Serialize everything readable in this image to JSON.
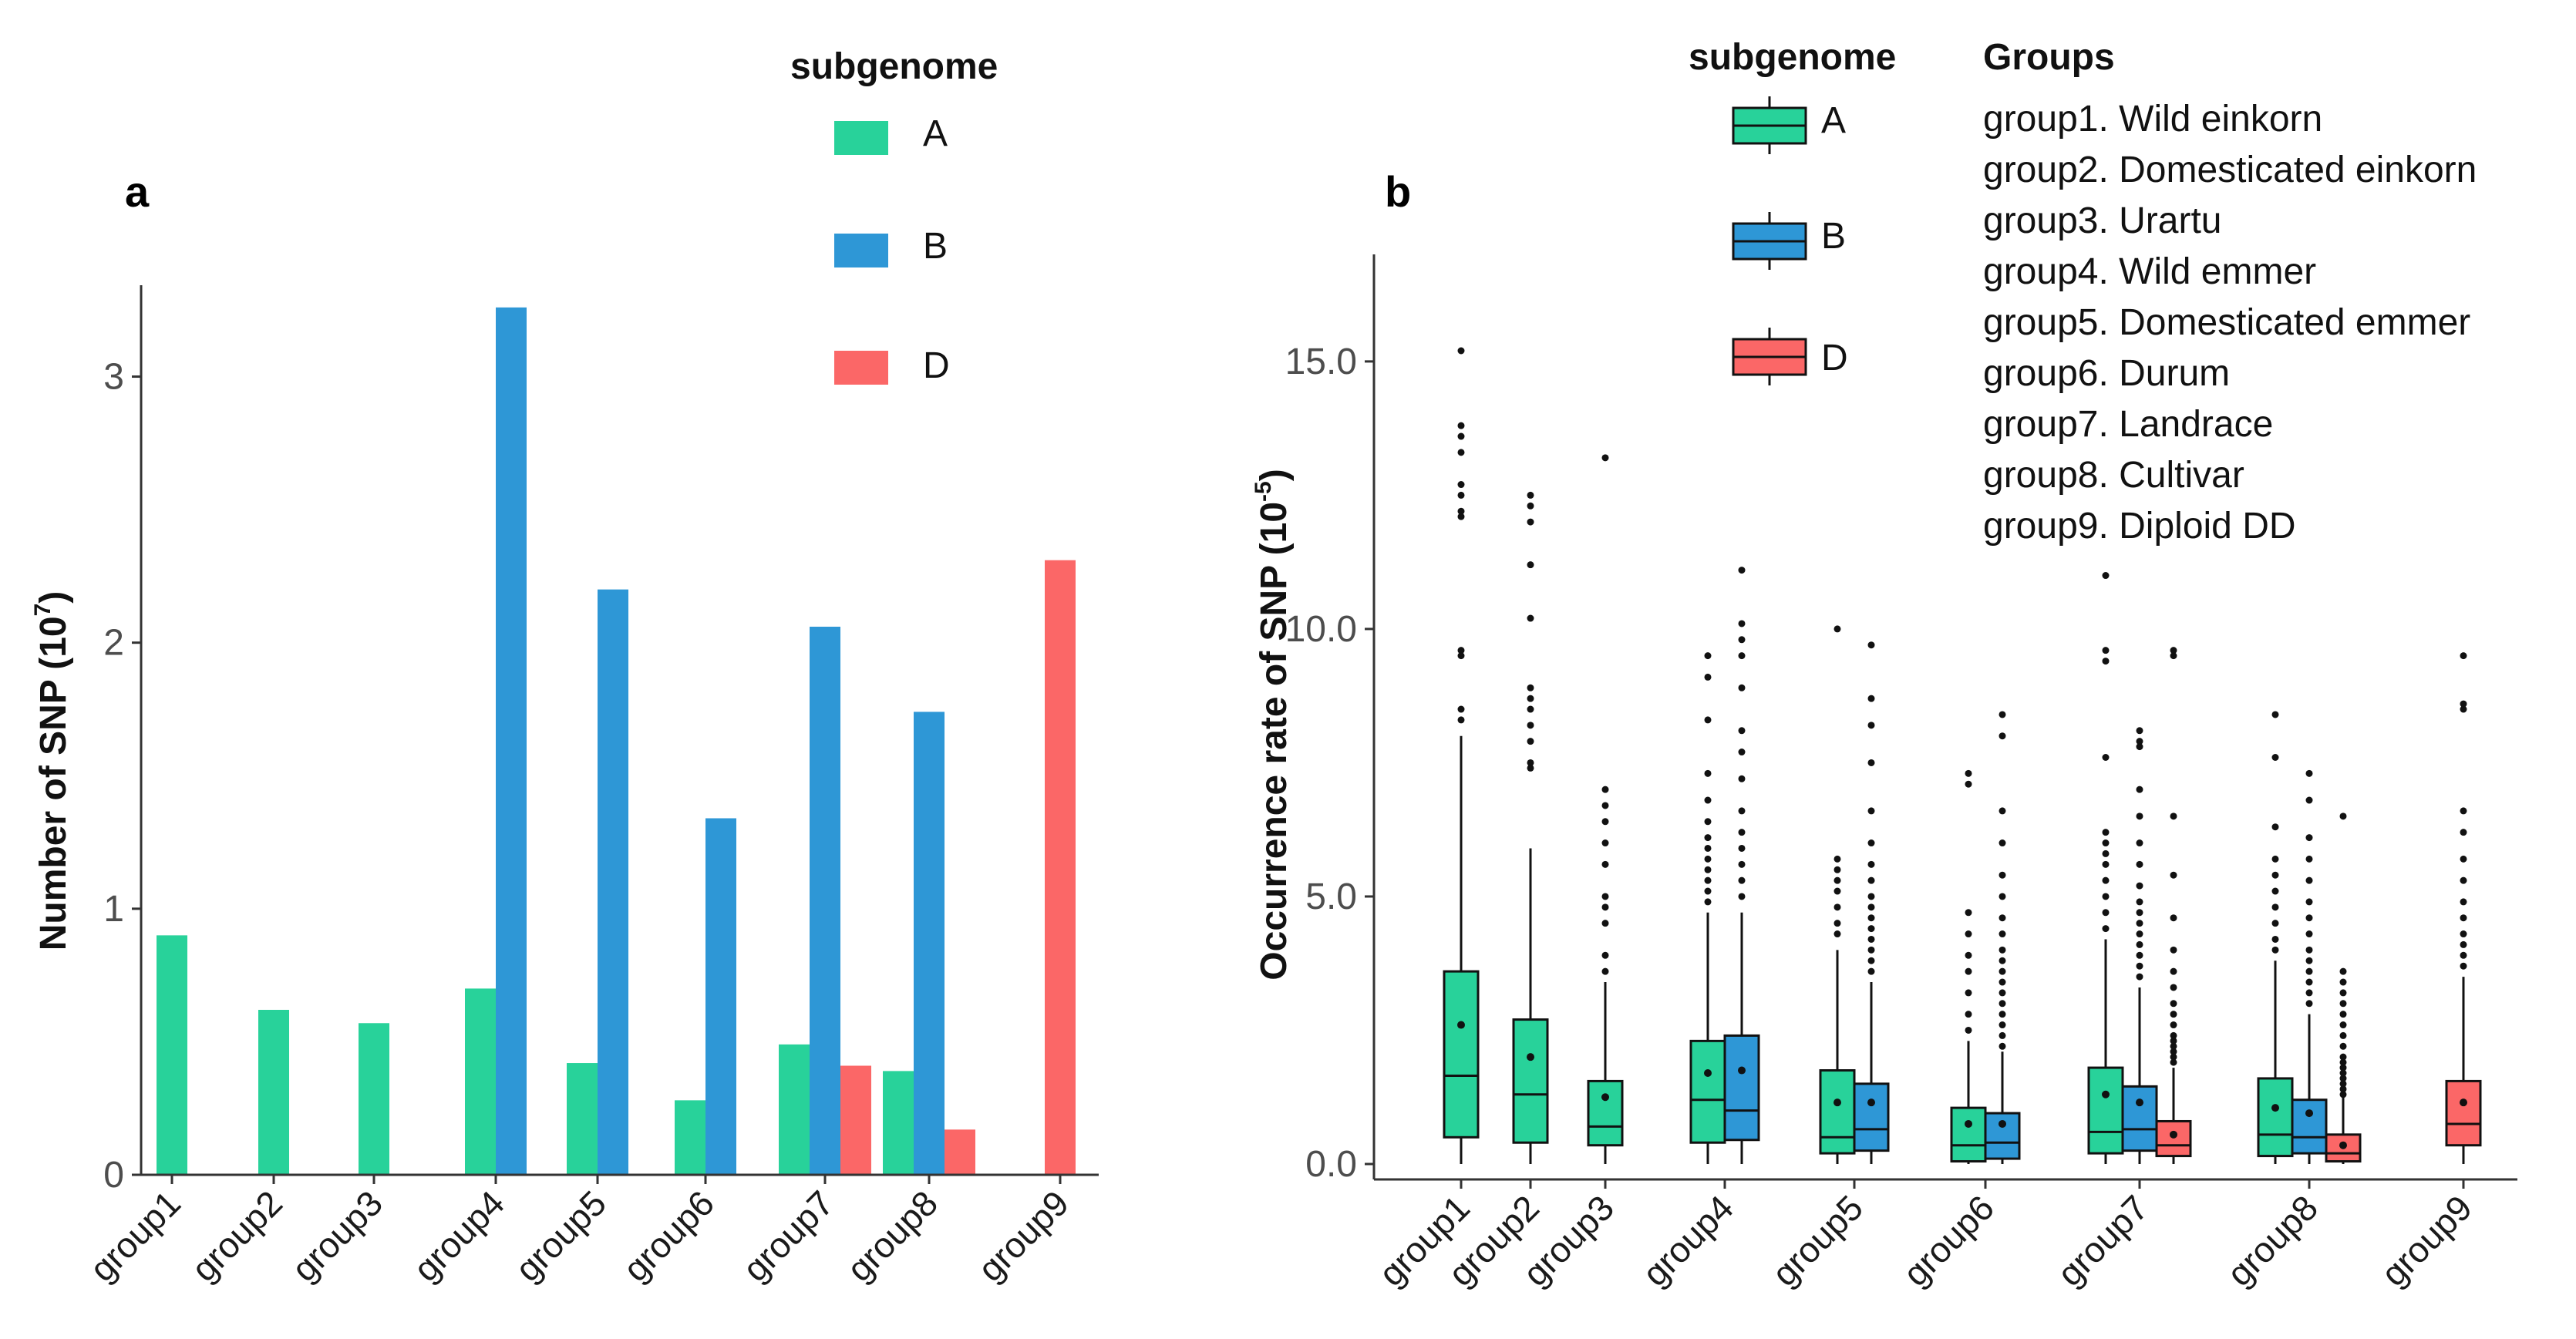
{
  "colors": {
    "A": "#28d29a",
    "B": "#2e97d6",
    "D": "#fb6767",
    "axis": "#333333"
  },
  "chart_data": [
    {
      "type": "bar",
      "panel_label": "a",
      "title": "",
      "xlabel": "",
      "ylabel": "Number of SNP (10",
      "ylabel_exp": "7",
      "ylabel_close": ")",
      "ylim": [
        0,
        3.3
      ],
      "yticks": [
        0,
        1,
        2,
        3
      ],
      "ytick_labels": [
        "0",
        "1",
        "2",
        "3"
      ],
      "categories": [
        "group1",
        "group2",
        "group3",
        "group4",
        "group5",
        "group6",
        "group7",
        "group8",
        "group9"
      ],
      "series": [
        {
          "name": "A",
          "values": [
            0.9,
            0.62,
            0.57,
            0.7,
            0.42,
            0.28,
            0.49,
            0.39,
            null
          ]
        },
        {
          "name": "B",
          "values": [
            null,
            null,
            null,
            3.26,
            2.2,
            1.34,
            2.06,
            1.74,
            null
          ]
        },
        {
          "name": "D",
          "values": [
            null,
            null,
            null,
            null,
            null,
            null,
            0.41,
            0.17,
            2.31
          ]
        }
      ],
      "legend": {
        "title": "subgenome",
        "entries": [
          "A",
          "B",
          "D"
        ],
        "placement": "top-right"
      }
    },
    {
      "type": "box",
      "panel_label": "b",
      "title": "",
      "xlabel": "",
      "ylabel": "Occurrence rate of SNP (10",
      "ylabel_exp": "-5",
      "ylabel_close": ")",
      "ylim": [
        0,
        16.8
      ],
      "yticks": [
        0,
        5,
        10,
        15
      ],
      "ytick_labels": [
        "0.0",
        "5.0",
        "10.0",
        "15.0"
      ],
      "categories": [
        "group1",
        "group2",
        "group3",
        "group4",
        "group5",
        "group6",
        "group7",
        "group8",
        "group9"
      ],
      "boxes": [
        {
          "group": "group1",
          "subgenome": "A",
          "q1": 0.5,
          "median": 1.65,
          "q3": 3.6,
          "lower": 0.0,
          "upper": 8.0,
          "mean": 2.6,
          "outliers": [
            8.3,
            8.5,
            9.5,
            9.6,
            12.1,
            12.2,
            12.5,
            12.7,
            13.3,
            13.6,
            13.8,
            15.2
          ]
        },
        {
          "group": "group2",
          "subgenome": "A",
          "q1": 0.4,
          "median": 1.3,
          "q3": 2.7,
          "lower": 0.0,
          "upper": 5.9,
          "mean": 2.0,
          "outliers": [
            7.4,
            7.5,
            7.9,
            8.2,
            8.5,
            8.7,
            8.9,
            10.2,
            11.2,
            12.0,
            12.3,
            12.5
          ]
        },
        {
          "group": "group3",
          "subgenome": "A",
          "q1": 0.35,
          "median": 0.7,
          "q3": 1.55,
          "lower": 0.0,
          "upper": 3.4,
          "mean": 1.25,
          "outliers": [
            3.6,
            3.9,
            4.5,
            4.8,
            5.0,
            5.6,
            6.0,
            6.4,
            6.7,
            7.0,
            13.2
          ]
        },
        {
          "group": "group4",
          "subgenome": "A",
          "q1": 0.4,
          "median": 1.2,
          "q3": 2.3,
          "lower": 0.0,
          "upper": 4.7,
          "mean": 1.7,
          "outliers": [
            4.9,
            5.1,
            5.3,
            5.5,
            5.7,
            5.9,
            6.1,
            6.4,
            6.8,
            7.3,
            8.3,
            9.1,
            9.5
          ]
        },
        {
          "group": "group4",
          "subgenome": "B",
          "q1": 0.45,
          "median": 1.0,
          "q3": 2.4,
          "lower": 0.0,
          "upper": 4.7,
          "mean": 1.75,
          "outliers": [
            5.0,
            5.3,
            5.6,
            5.9,
            6.2,
            6.6,
            7.2,
            7.7,
            8.1,
            8.9,
            9.5,
            9.8,
            10.1,
            11.1
          ]
        },
        {
          "group": "group5",
          "subgenome": "A",
          "q1": 0.2,
          "median": 0.5,
          "q3": 1.75,
          "lower": 0.0,
          "upper": 4.0,
          "mean": 1.15,
          "outliers": [
            4.3,
            4.5,
            4.8,
            5.1,
            5.3,
            5.5,
            5.7,
            10.0
          ]
        },
        {
          "group": "group5",
          "subgenome": "B",
          "q1": 0.25,
          "median": 0.65,
          "q3": 1.5,
          "lower": 0.0,
          "upper": 3.4,
          "mean": 1.15,
          "outliers": [
            3.6,
            3.8,
            4.0,
            4.2,
            4.4,
            4.6,
            4.8,
            5.0,
            5.3,
            5.6,
            6.0,
            6.6,
            7.5,
            8.2,
            8.7,
            9.7
          ]
        },
        {
          "group": "group6",
          "subgenome": "A",
          "q1": 0.05,
          "median": 0.35,
          "q3": 1.05,
          "lower": 0.0,
          "upper": 2.3,
          "mean": 0.75,
          "outliers": [
            2.5,
            2.8,
            3.2,
            3.6,
            3.9,
            4.3,
            4.7,
            7.1,
            7.3
          ]
        },
        {
          "group": "group6",
          "subgenome": "B",
          "q1": 0.1,
          "median": 0.4,
          "q3": 0.95,
          "lower": 0.0,
          "upper": 2.1,
          "mean": 0.75,
          "outliers": [
            2.2,
            2.4,
            2.6,
            2.8,
            3.0,
            3.2,
            3.4,
            3.6,
            3.8,
            4.0,
            4.3,
            4.6,
            5.0,
            5.4,
            6.0,
            6.6,
            8.0,
            8.4
          ]
        },
        {
          "group": "group7",
          "subgenome": "A",
          "q1": 0.2,
          "median": 0.6,
          "q3": 1.8,
          "lower": 0.0,
          "upper": 4.2,
          "mean": 1.3,
          "outliers": [
            4.4,
            4.7,
            5.0,
            5.3,
            5.6,
            5.8,
            6.0,
            6.2,
            7.6,
            9.4,
            9.6,
            11.0
          ]
        },
        {
          "group": "group7",
          "subgenome": "B",
          "q1": 0.25,
          "median": 0.65,
          "q3": 1.45,
          "lower": 0.0,
          "upper": 3.3,
          "mean": 1.15,
          "outliers": [
            3.5,
            3.7,
            3.9,
            4.1,
            4.3,
            4.5,
            4.7,
            4.9,
            5.2,
            5.6,
            6.0,
            6.5,
            7.0,
            7.8,
            7.9,
            8.1
          ]
        },
        {
          "group": "group7",
          "subgenome": "D",
          "q1": 0.15,
          "median": 0.35,
          "q3": 0.8,
          "lower": 0.0,
          "upper": 1.8,
          "mean": 0.55,
          "outliers": [
            1.9,
            2.0,
            2.1,
            2.2,
            2.3,
            2.4,
            2.6,
            2.8,
            3.0,
            3.3,
            3.6,
            4.0,
            4.6,
            5.4,
            6.5,
            9.5,
            9.6
          ]
        },
        {
          "group": "group8",
          "subgenome": "A",
          "q1": 0.15,
          "median": 0.55,
          "q3": 1.6,
          "lower": 0.0,
          "upper": 3.8,
          "mean": 1.05,
          "outliers": [
            4.0,
            4.2,
            4.5,
            4.8,
            5.1,
            5.4,
            5.7,
            6.3,
            7.6,
            8.4
          ]
        },
        {
          "group": "group8",
          "subgenome": "B",
          "q1": 0.2,
          "median": 0.5,
          "q3": 1.2,
          "lower": 0.0,
          "upper": 2.8,
          "mean": 0.95,
          "outliers": [
            3.0,
            3.2,
            3.4,
            3.6,
            3.8,
            4.0,
            4.3,
            4.6,
            4.9,
            5.3,
            5.7,
            6.1,
            6.8,
            7.3
          ]
        },
        {
          "group": "group8",
          "subgenome": "D",
          "q1": 0.05,
          "median": 0.2,
          "q3": 0.55,
          "lower": 0.0,
          "upper": 1.25,
          "mean": 0.35,
          "outliers": [
            1.3,
            1.4,
            1.5,
            1.6,
            1.7,
            1.8,
            1.9,
            2.0,
            2.2,
            2.4,
            2.6,
            2.8,
            3.0,
            3.2,
            3.4,
            3.6,
            6.5
          ]
        },
        {
          "group": "group9",
          "subgenome": "D",
          "q1": 0.35,
          "median": 0.75,
          "q3": 1.55,
          "lower": 0.0,
          "upper": 3.5,
          "mean": 1.15,
          "outliers": [
            3.7,
            3.9,
            4.1,
            4.3,
            4.6,
            4.9,
            5.3,
            5.7,
            6.2,
            6.6,
            8.5,
            8.6,
            9.5
          ]
        }
      ],
      "legend": {
        "title": "subgenome",
        "entries": [
          "A",
          "B",
          "D"
        ],
        "placement": "top-right"
      }
    }
  ],
  "groups_legend": {
    "title": "Groups",
    "entries": [
      "group1. Wild einkorn",
      "group2. Domesticated einkorn",
      "group3. Urartu",
      "group4. Wild emmer",
      "group5. Domesticated emmer",
      "group6. Durum",
      "group7. Landrace",
      "group8. Cultivar",
      "group9. Diploid DD"
    ]
  }
}
